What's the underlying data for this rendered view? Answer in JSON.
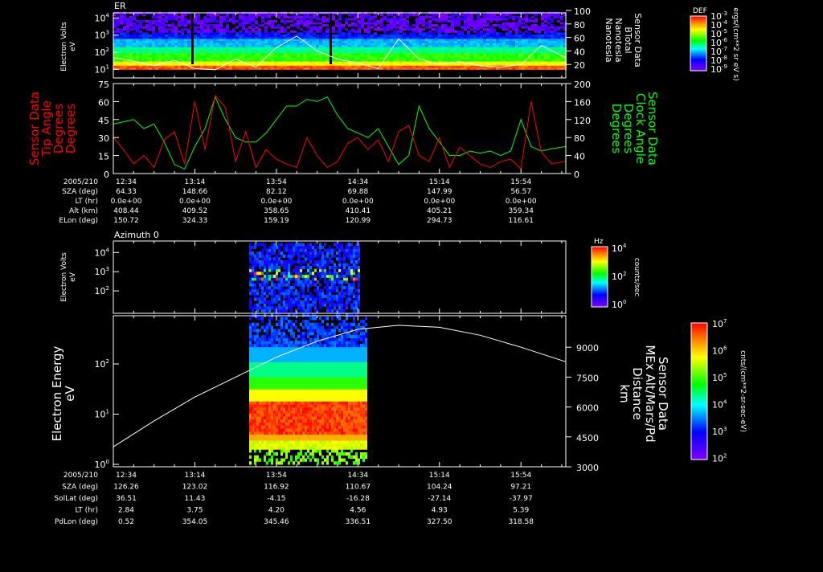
{
  "chart_data": [
    {
      "type": "heatmap",
      "title": "ER",
      "ylabel": "Electron Volts",
      "yunits": "eV",
      "yscale": "log",
      "yticks": [
        "10^1",
        "10^2",
        "10^3",
        "10^4"
      ],
      "ylim_log10": [
        0.5,
        4.3
      ],
      "y2label_lines": [
        "Sensor Data",
        "BTotal",
        "Nanotesla",
        "Nanotesla"
      ],
      "y2ticks": [
        20,
        40,
        60,
        80,
        100
      ],
      "y2lim": [
        0,
        100
      ],
      "colorbar": {
        "title": "DEF",
        "units": "ergs/(cm**2 sr eV s)",
        "ticks": [
          "10^-9",
          "10^-8",
          "10^-7",
          "10^-6",
          "10^-5",
          "10^-4",
          "10^-3"
        ]
      },
      "line_series": {
        "name": "BTotal",
        "color": "#ffffff",
        "x_minutes": [
          0,
          10,
          20,
          30,
          40,
          50,
          60,
          70,
          80,
          90,
          100,
          110,
          120,
          130,
          140,
          150,
          160,
          170,
          180,
          190,
          200,
          210,
          222
        ],
        "values": [
          30,
          25,
          18,
          26,
          14,
          12,
          28,
          16,
          45,
          62,
          40,
          28,
          22,
          14,
          58,
          28,
          20,
          24,
          18,
          16,
          20,
          48,
          30
        ]
      }
    },
    {
      "type": "line",
      "ylabel_lines": [
        "Sensor Data",
        "Tip Angle",
        "Degrees",
        "Degrees"
      ],
      "y2label_lines": [
        "Sensor Data",
        "Clock Angle",
        "Degrees",
        "Degrees"
      ],
      "ylim": [
        0,
        75
      ],
      "yticks": [
        0,
        15,
        30,
        45,
        60,
        75
      ],
      "y2lim": [
        0,
        200
      ],
      "y2ticks": [
        0,
        40,
        80,
        120,
        160,
        200
      ],
      "series": [
        {
          "name": "Tip Angle",
          "color": "#ff0000",
          "axis": "left",
          "x_minutes": [
            0,
            5,
            10,
            15,
            20,
            25,
            30,
            35,
            40,
            45,
            50,
            55,
            60,
            65,
            70,
            75,
            80,
            85,
            90,
            95,
            100,
            105,
            110,
            115,
            120,
            125,
            130,
            135,
            140,
            145,
            150,
            155,
            160,
            165,
            170,
            175,
            180,
            185,
            190,
            195,
            200,
            205,
            210,
            215,
            222
          ],
          "values": [
            30,
            20,
            8,
            15,
            5,
            28,
            35,
            8,
            60,
            20,
            65,
            55,
            10,
            35,
            5,
            20,
            12,
            8,
            5,
            30,
            15,
            5,
            10,
            25,
            30,
            20,
            28,
            10,
            35,
            40,
            15,
            10,
            30,
            5,
            22,
            15,
            8,
            5,
            10,
            12,
            4,
            60,
            18,
            8,
            10
          ]
        },
        {
          "name": "Clock Angle",
          "color": "#00ff00",
          "axis": "right",
          "x_minutes": [
            0,
            5,
            10,
            15,
            20,
            25,
            30,
            35,
            40,
            45,
            50,
            55,
            60,
            65,
            70,
            75,
            80,
            85,
            90,
            95,
            100,
            105,
            110,
            115,
            120,
            125,
            130,
            135,
            140,
            145,
            150,
            155,
            160,
            165,
            170,
            175,
            180,
            185,
            190,
            195,
            200,
            205,
            210,
            215,
            222
          ],
          "values": [
            110,
            115,
            120,
            100,
            110,
            70,
            20,
            10,
            60,
            100,
            170,
            120,
            80,
            70,
            70,
            90,
            120,
            150,
            150,
            165,
            160,
            170,
            130,
            100,
            90,
            80,
            100,
            60,
            20,
            40,
            150,
            100,
            70,
            40,
            40,
            50,
            45,
            50,
            40,
            50,
            120,
            60,
            50,
            55,
            60
          ]
        }
      ],
      "time_axis": {
        "labels": [
          "2005/210",
          "12:34",
          "13:14",
          "13:54",
          "14:34",
          "15:14",
          "15:54"
        ],
        "rows": [
          {
            "label": "SZA (deg)",
            "values": [
              "64.33",
              "148.66",
              "82.12",
              "69.88",
              "147.99",
              "56.57"
            ]
          },
          {
            "label": "LT (hr)",
            "values": [
              "0.0e+00",
              "0.0e+00",
              "0.0e+00",
              "0.0e+00",
              "0.0e+00",
              "0.0e+00"
            ]
          },
          {
            "label": "Alt (km)",
            "values": [
              "408.44",
              "409.52",
              "358.65",
              "410.41",
              "405.21",
              "359.34"
            ]
          },
          {
            "label": "ELon (deg)",
            "values": [
              "150.72",
              "324.33",
              "159.19",
              "120.99",
              "294.73",
              "116.61"
            ]
          }
        ]
      }
    },
    {
      "type": "heatmap",
      "title": "Azimuth 0",
      "ylabel": "Electron Volts",
      "yunits": "eV",
      "yscale": "log",
      "yticks": [
        "10^2",
        "10^3",
        "10^4"
      ],
      "data_time_range": [
        "13:41",
        "14:34"
      ],
      "colorbar": {
        "title": "Hz",
        "units": "counts/sec",
        "ticks": [
          "10^0",
          "10^2",
          "10^4"
        ]
      }
    },
    {
      "type": "heatmap",
      "ylabel": "Electron Energy",
      "yunits": "eV",
      "yscale": "log",
      "yticks": [
        "10^0",
        "10^1",
        "10^2"
      ],
      "y2label_lines": [
        "Sensor Data",
        "MEx Alt/Mars/Pd",
        "Distance",
        "km"
      ],
      "y2lim": [
        3000,
        10300
      ],
      "y2ticks": [
        3000,
        4500,
        6000,
        7500,
        9000
      ],
      "data_time_range": [
        "13:41",
        "14:38"
      ],
      "colorbar": {
        "units": "cnts/(cm**2-sr-sec-eV)",
        "ticks": [
          "10^2",
          "10^3",
          "10^4",
          "10^5",
          "10^6",
          "10^7"
        ]
      },
      "line_series": {
        "name": "MEx Alt",
        "color": "#ffffff",
        "x_minutes": [
          0,
          20,
          40,
          60,
          80,
          100,
          120,
          140,
          160,
          180,
          200,
          222
        ],
        "values": [
          4000,
          5300,
          6500,
          7500,
          8500,
          9300,
          9900,
          10100,
          10000,
          9600,
          9000,
          8270
        ]
      },
      "time_axis": {
        "labels": [
          "2005/210",
          "12:34",
          "13:14",
          "13:54",
          "14:34",
          "15:14",
          "15:54"
        ],
        "rows": [
          {
            "label": "SZA (deg)",
            "values": [
              "126.26",
              "123.02",
              "116.92",
              "110.67",
              "104.24",
              "97.21"
            ]
          },
          {
            "label": "SolLat (deg)",
            "values": [
              "36.51",
              "11.43",
              "-4.15",
              "-16.28",
              "-27.14",
              "-37.97"
            ]
          },
          {
            "label": "LT (hr)",
            "values": [
              "2.84",
              "3.75",
              "4.20",
              "4.56",
              "4.93",
              "5.39"
            ]
          },
          {
            "label": "PdLon (deg)",
            "values": [
              "0.52",
              "354.05",
              "345.46",
              "336.51",
              "327.50",
              "318.58"
            ]
          }
        ]
      }
    }
  ]
}
